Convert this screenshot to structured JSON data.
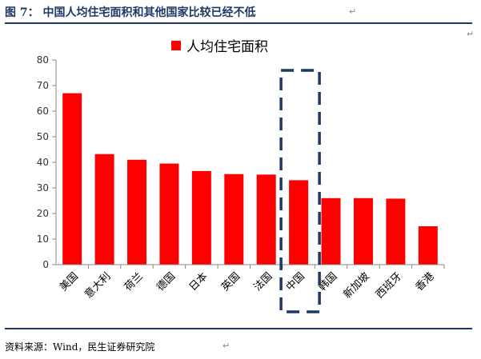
{
  "figure": {
    "title": "图 7：  中国人均住宅面积和其他国家比较已经不低",
    "source": "资料来源：Wind，民生证券研究院",
    "paragraph_mark": "↵"
  },
  "chart_data": {
    "type": "bar",
    "categories": [
      "美国",
      "意大利",
      "荷兰",
      "德国",
      "日本",
      "英国",
      "法国",
      "中国",
      "韩国",
      "新加坡",
      "西班牙",
      "香港"
    ],
    "series": [
      {
        "name": "人均住宅面积",
        "color": "#ff0000",
        "values": [
          67,
          43.2,
          41,
          39.5,
          36.6,
          35.4,
          35.2,
          33,
          26,
          26,
          25.8,
          15
        ]
      }
    ],
    "ylim": [
      0,
      80
    ],
    "yticks": [
      0,
      10,
      20,
      30,
      40,
      50,
      60,
      70,
      80
    ],
    "legend_position": "top",
    "grid": false,
    "highlight": {
      "category": "中国",
      "style": "dashed-box",
      "color": "#1f3864"
    }
  }
}
